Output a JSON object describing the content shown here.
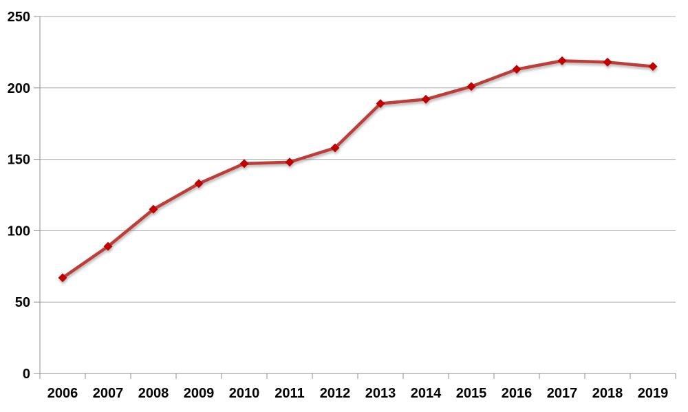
{
  "chart_data": {
    "type": "line",
    "title": "",
    "xlabel": "",
    "ylabel": "",
    "categories": [
      "2006",
      "2007",
      "2008",
      "2009",
      "2010",
      "2011",
      "2012",
      "2013",
      "2014",
      "2015",
      "2016",
      "2017",
      "2018",
      "2019"
    ],
    "series": [
      {
        "name": "series-1",
        "values": [
          67,
          89,
          115,
          133,
          147,
          148,
          158,
          189,
          192,
          201,
          213,
          219,
          218,
          215
        ],
        "line_color": "#be3e38",
        "marker_color": "#c00000",
        "marker": "diamond"
      }
    ],
    "ylim": [
      0,
      250
    ],
    "yticks": [
      0,
      50,
      100,
      150,
      200,
      250
    ],
    "grid": true,
    "legend": false,
    "gridline_color": "#a6a6a6",
    "axis_color": "#8c8c8c",
    "tick_label_color": "#000000",
    "background_color": "#ffffff"
  }
}
